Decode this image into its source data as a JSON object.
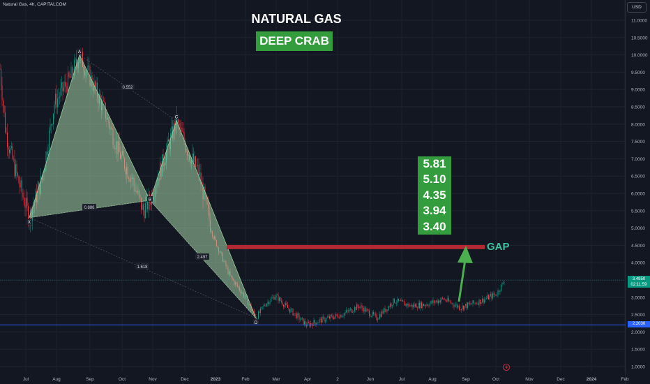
{
  "header": {
    "symbol": "Natural Gas, 4h, CAPITALCOM",
    "currency": "USD"
  },
  "annotations": {
    "title": "NATURAL GAS",
    "subtitle": "DEEP CRAB",
    "targets": [
      "5.81",
      "5.10",
      "4.35",
      "3.94",
      "3.40"
    ],
    "gap_label": "GAP"
  },
  "colors": {
    "background": "#131722",
    "bull_candle": "#089981",
    "bear_candle": "#f23645",
    "pattern_fill": "#a5d6a7",
    "gap_bar": "#b22833",
    "support_line": "#2962ff",
    "label_green": "#339d3e"
  },
  "chart_data": {
    "type": "candlestick",
    "y_axis": {
      "min": 1.0,
      "max": 11.0,
      "ticks": [
        "11.0000",
        "10.5000",
        "10.0000",
        "9.5000",
        "9.0000",
        "8.5000",
        "8.0000",
        "7.5000",
        "7.0000",
        "6.5000",
        "6.0000",
        "5.5000",
        "5.0000",
        "4.5000",
        "4.0000",
        "3.5000",
        "3.0000",
        "2.5000",
        "2.0000",
        "1.5000",
        "1.0000"
      ]
    },
    "x_axis": {
      "ticks": [
        "Jul",
        "Aug",
        "Sep",
        "Oct",
        "Nov",
        "Dec",
        "2023",
        "Feb",
        "Mar",
        "Apr",
        "2",
        "Jun",
        "Jul",
        "Aug",
        "Sep",
        "Oct",
        "Nov",
        "Dec",
        "2024",
        "Feb"
      ],
      "bold": [
        "2023",
        "2024"
      ]
    },
    "price_path": [
      [
        0,
        9.6
      ],
      [
        8,
        7.8
      ],
      [
        20,
        6.8
      ],
      [
        42,
        5.3
      ],
      [
        60,
        6.4
      ],
      [
        78,
        8.6
      ],
      [
        100,
        9.3
      ],
      [
        114,
        10.0
      ],
      [
        130,
        9.3
      ],
      [
        150,
        8.4
      ],
      [
        170,
        7.2
      ],
      [
        190,
        6.4
      ],
      [
        205,
        5.5
      ],
      [
        215,
        5.8
      ],
      [
        235,
        7.0
      ],
      [
        253,
        8.1
      ],
      [
        270,
        7.2
      ],
      [
        285,
        6.6
      ],
      [
        305,
        4.8
      ],
      [
        330,
        3.6
      ],
      [
        352,
        3.0
      ],
      [
        367,
        2.4
      ],
      [
        380,
        2.8
      ],
      [
        395,
        3.05
      ],
      [
        412,
        2.7
      ],
      [
        440,
        2.2
      ],
      [
        462,
        2.35
      ],
      [
        490,
        2.5
      ],
      [
        515,
        2.75
      ],
      [
        540,
        2.4
      ],
      [
        565,
        2.9
      ],
      [
        590,
        2.75
      ],
      [
        612,
        2.8
      ],
      [
        636,
        2.95
      ],
      [
        660,
        2.7
      ],
      [
        690,
        2.9
      ],
      [
        712,
        3.1
      ],
      [
        724,
        3.5
      ]
    ],
    "current_price": {
      "value": "3.4950",
      "countdown": "02:11:59"
    },
    "support_level": {
      "value": "2.2030"
    },
    "harmonic_pattern": {
      "name": "DEEP CRAB",
      "points": [
        {
          "label": "X",
          "x": 42,
          "price": 5.3
        },
        {
          "label": "A",
          "x": 114,
          "price": 10.0
        },
        {
          "label": "B",
          "x": 215,
          "price": 5.8
        },
        {
          "label": "C",
          "x": 253,
          "price": 8.1
        },
        {
          "label": "D",
          "x": 367,
          "price": 2.4
        }
      ],
      "ratios": [
        {
          "text": "0.552",
          "between": "A-C"
        },
        {
          "text": "0.886",
          "between": "X-B"
        },
        {
          "text": "2.497",
          "between": "B-D"
        },
        {
          "text": "1.618",
          "between": "X-D"
        }
      ]
    },
    "gap_zone": {
      "price": 4.45,
      "x_start": 325,
      "x_end": 695
    }
  }
}
